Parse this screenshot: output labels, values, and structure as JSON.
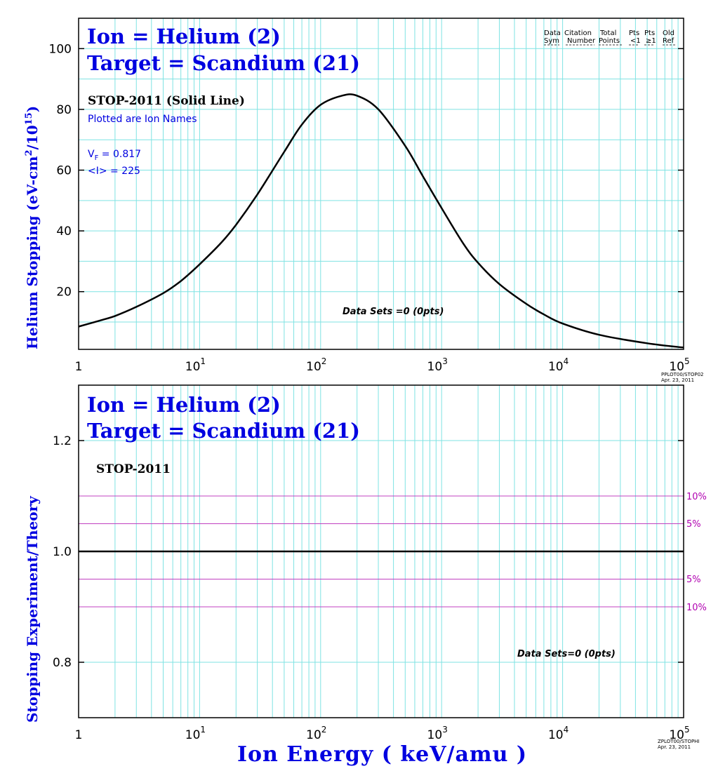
{
  "top": {
    "title_line1": "Ion = Helium (2)",
    "title_line2": "Target = Scandium (21)",
    "ylabel": "Helium Stopping (eV-cm",
    "ylabel_sup1": "2",
    "ylabel_mid": "/10",
    "ylabel_sup2": "15",
    "ylabel_end": ")",
    "model": "STOP-2011 (Solid Line)",
    "plotted": "Plotted are Ion Names",
    "vf_label": "V",
    "vf_sub": "F",
    "vf_value": " = 0.817",
    "i_value": "<I> = 225",
    "datasets": "Data Sets =0 (0pts)",
    "legend": {
      "col1_a": "Data",
      "col1_b": "Sym",
      "col2_a": "Citation",
      "col2_b": "Number",
      "col3_a": "Total",
      "col3_b": "Points",
      "col4_a": "Pts",
      "col4_b": "<1",
      "col5_a": "Pts",
      "col5_b": "≥1",
      "col6_a": "Old",
      "col6_b": "Ref"
    },
    "stamp_line1": "PPLOT00/STOP02",
    "stamp_line2": "Apr. 23, 2011"
  },
  "bottom": {
    "title_line1": "Ion = Helium (2)",
    "title_line2": "Target = Scandium (21)",
    "ylabel": "Stopping  Experiment/Theory",
    "model": "STOP-2011",
    "datasets": "Data Sets=0 (0pts)",
    "pct_labels": [
      "10%",
      "5%",
      "5%",
      "10%"
    ],
    "xlabel": "Ion  Energy  ( keV/amu )",
    "stamp_line1": "ZPLOT00/STOPHI",
    "stamp_line2": "Apr. 23, 2011"
  },
  "x_ticks": [
    {
      "base": "1",
      "exp": ""
    },
    {
      "base": "10",
      "exp": "1"
    },
    {
      "base": "10",
      "exp": "2"
    },
    {
      "base": "10",
      "exp": "3"
    },
    {
      "base": "10",
      "exp": "4"
    },
    {
      "base": "10",
      "exp": "5"
    }
  ],
  "chart_data": [
    {
      "type": "line",
      "title": "Ion = Helium (2) Target = Scandium (21)",
      "xlabel": "Ion Energy ( keV/amu )",
      "ylabel": "Helium Stopping (eV-cm2/10^15)",
      "x_scale": "log",
      "xlim": [
        1,
        100000
      ],
      "ylim": [
        1,
        110
      ],
      "y_ticks": [
        20,
        40,
        60,
        80,
        100
      ],
      "grid": true,
      "series": [
        {
          "name": "STOP-2011 (Solid Line)",
          "x": [
            1,
            1.5,
            2,
            3,
            5,
            7,
            10,
            15,
            20,
            30,
            50,
            70,
            100,
            150,
            200,
            300,
            500,
            700,
            1000,
            1500,
            2000,
            3000,
            5000,
            7000,
            10000,
            20000,
            50000,
            100000
          ],
          "y": [
            8.5,
            10.5,
            12.0,
            15.0,
            19.5,
            23.5,
            29.0,
            36.0,
            42.0,
            52.0,
            66.0,
            75.0,
            81.5,
            84.5,
            84.5,
            80.0,
            68.0,
            58.0,
            47.5,
            36.0,
            29.5,
            22.5,
            16.0,
            12.5,
            9.5,
            5.8,
            3.0,
            1.6
          ]
        }
      ]
    },
    {
      "type": "line",
      "title": "Ion = Helium (2) Target = Scandium (21)",
      "xlabel": "Ion Energy ( keV/amu )",
      "ylabel": "Stopping Experiment/Theory",
      "x_scale": "log",
      "xlim": [
        1,
        100000
      ],
      "ylim": [
        0.7,
        1.3
      ],
      "y_ticks": [
        0.8,
        1.0,
        1.2
      ],
      "grid": true,
      "reference_lines": [
        1.1,
        1.05,
        1.0,
        0.95,
        0.9
      ],
      "series": [
        {
          "name": "STOP-2011",
          "x": [
            1,
            100000
          ],
          "y": [
            1.0,
            1.0
          ]
        }
      ]
    }
  ]
}
